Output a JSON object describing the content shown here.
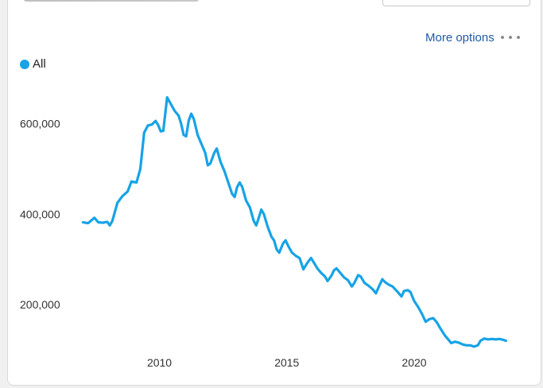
{
  "header": {
    "more_options_label": "More options"
  },
  "colors": {
    "series": "#17a3e6",
    "link": "#1f5aa8"
  },
  "legend": {
    "items": [
      {
        "label": "All",
        "color": "#17a3e6"
      }
    ]
  },
  "chart_data": {
    "type": "line",
    "title": "",
    "xlabel": "",
    "ylabel": "",
    "xlim": [
      2006.8,
      2024.4
    ],
    "ylim": [
      100000,
      680000
    ],
    "grid": false,
    "legend_position": "top-left",
    "x_ticks": [
      {
        "value": 2010,
        "label": "2010"
      },
      {
        "value": 2015,
        "label": "2015"
      },
      {
        "value": 2020,
        "label": "2020"
      }
    ],
    "y_ticks": [
      {
        "value": 200000,
        "label": "200,000"
      },
      {
        "value": 400000,
        "label": "400,000"
      },
      {
        "value": 600000,
        "label": "600,000"
      }
    ],
    "series": [
      {
        "name": "All",
        "points": [
          [
            2007.0,
            382000
          ],
          [
            2007.2,
            380000
          ],
          [
            2007.45,
            392000
          ],
          [
            2007.6,
            382000
          ],
          [
            2007.8,
            381000
          ],
          [
            2007.95,
            383000
          ],
          [
            2008.05,
            375000
          ],
          [
            2008.15,
            385000
          ],
          [
            2008.35,
            425000
          ],
          [
            2008.55,
            440000
          ],
          [
            2008.75,
            450000
          ],
          [
            2008.9,
            472000
          ],
          [
            2009.1,
            470000
          ],
          [
            2009.25,
            500000
          ],
          [
            2009.4,
            580000
          ],
          [
            2009.55,
            596000
          ],
          [
            2009.7,
            598000
          ],
          [
            2009.85,
            606000
          ],
          [
            2009.95,
            597000
          ],
          [
            2010.05,
            583000
          ],
          [
            2010.15,
            584000
          ],
          [
            2010.3,
            658000
          ],
          [
            2010.45,
            643000
          ],
          [
            2010.6,
            628000
          ],
          [
            2010.75,
            618000
          ],
          [
            2010.85,
            600000
          ],
          [
            2010.95,
            575000
          ],
          [
            2011.05,
            572000
          ],
          [
            2011.15,
            607000
          ],
          [
            2011.25,
            622000
          ],
          [
            2011.35,
            610000
          ],
          [
            2011.5,
            575000
          ],
          [
            2011.65,
            555000
          ],
          [
            2011.8,
            535000
          ],
          [
            2011.9,
            508000
          ],
          [
            2012.0,
            512000
          ],
          [
            2012.15,
            535000
          ],
          [
            2012.25,
            545000
          ],
          [
            2012.4,
            515000
          ],
          [
            2012.55,
            495000
          ],
          [
            2012.7,
            470000
          ],
          [
            2012.85,
            445000
          ],
          [
            2012.95,
            438000
          ],
          [
            2013.05,
            460000
          ],
          [
            2013.15,
            470000
          ],
          [
            2013.25,
            460000
          ],
          [
            2013.4,
            430000
          ],
          [
            2013.55,
            415000
          ],
          [
            2013.7,
            385000
          ],
          [
            2013.8,
            375000
          ],
          [
            2013.9,
            392000
          ],
          [
            2014.0,
            410000
          ],
          [
            2014.1,
            400000
          ],
          [
            2014.25,
            372000
          ],
          [
            2014.4,
            350000
          ],
          [
            2014.5,
            342000
          ],
          [
            2014.6,
            322000
          ],
          [
            2014.7,
            315000
          ],
          [
            2014.85,
            335000
          ],
          [
            2014.95,
            342000
          ],
          [
            2015.05,
            330000
          ],
          [
            2015.2,
            315000
          ],
          [
            2015.35,
            308000
          ],
          [
            2015.5,
            303000
          ],
          [
            2015.65,
            278000
          ],
          [
            2015.8,
            292000
          ],
          [
            2015.95,
            303000
          ],
          [
            2016.05,
            294000
          ],
          [
            2016.2,
            280000
          ],
          [
            2016.35,
            270000
          ],
          [
            2016.5,
            262000
          ],
          [
            2016.6,
            252000
          ],
          [
            2016.75,
            264000
          ],
          [
            2016.85,
            276000
          ],
          [
            2016.95,
            280000
          ],
          [
            2017.1,
            270000
          ],
          [
            2017.25,
            260000
          ],
          [
            2017.4,
            254000
          ],
          [
            2017.55,
            240000
          ],
          [
            2017.65,
            248000
          ],
          [
            2017.8,
            265000
          ],
          [
            2017.9,
            262000
          ],
          [
            2018.05,
            248000
          ],
          [
            2018.2,
            242000
          ],
          [
            2018.35,
            235000
          ],
          [
            2018.5,
            225000
          ],
          [
            2018.6,
            238000
          ],
          [
            2018.75,
            256000
          ],
          [
            2018.85,
            250000
          ],
          [
            2019.0,
            244000
          ],
          [
            2019.15,
            240000
          ],
          [
            2019.35,
            228000
          ],
          [
            2019.5,
            218000
          ],
          [
            2019.6,
            230000
          ],
          [
            2019.75,
            232000
          ],
          [
            2019.85,
            228000
          ],
          [
            2020.0,
            208000
          ],
          [
            2020.15,
            195000
          ],
          [
            2020.3,
            180000
          ],
          [
            2020.45,
            162000
          ],
          [
            2020.6,
            168000
          ],
          [
            2020.75,
            170000
          ],
          [
            2020.9,
            160000
          ],
          [
            2021.0,
            150000
          ],
          [
            2021.2,
            132000
          ],
          [
            2021.35,
            122000
          ],
          [
            2021.45,
            115000
          ],
          [
            2021.6,
            118000
          ],
          [
            2021.75,
            116000
          ],
          [
            2021.9,
            112000
          ],
          [
            2022.05,
            110000
          ],
          [
            2022.2,
            110000
          ],
          [
            2022.35,
            107000
          ],
          [
            2022.5,
            110000
          ],
          [
            2022.6,
            120000
          ],
          [
            2022.75,
            125000
          ],
          [
            2022.9,
            123000
          ],
          [
            2023.05,
            124000
          ],
          [
            2023.2,
            123000
          ],
          [
            2023.35,
            124000
          ],
          [
            2023.5,
            122000
          ],
          [
            2023.6,
            120000
          ]
        ]
      }
    ]
  }
}
